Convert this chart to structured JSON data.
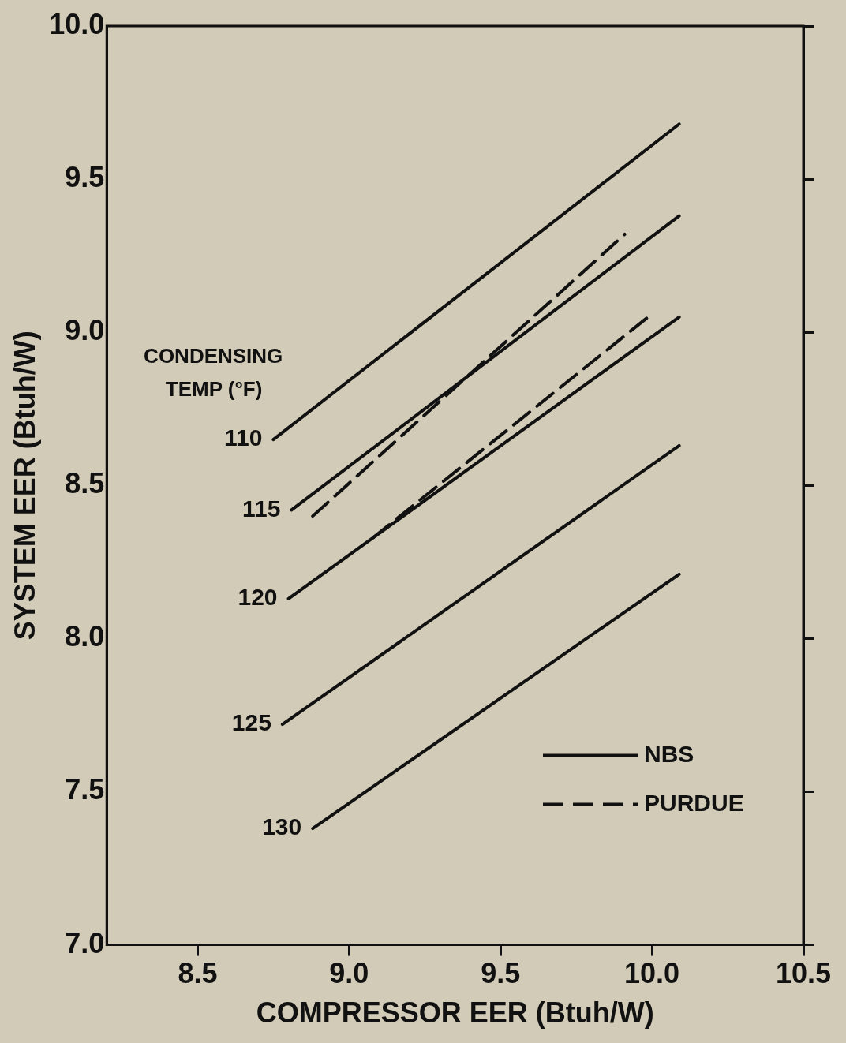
{
  "chart_data": {
    "type": "line",
    "xlabel": "COMPRESSOR EER (Btuh/W)",
    "ylabel": "SYSTEM EER (Btuh/W)",
    "xlim": [
      8.2,
      10.5
    ],
    "xticks": [
      8.5,
      {
        "value": 9,
        "label": "9.0"
      },
      9.5,
      {
        "value": 10,
        "label": "10.0"
      },
      10.5
    ],
    "ylim": [
      7,
      10
    ],
    "yticks": [
      {
        "value": 7,
        "label": "7.0"
      },
      7.5,
      {
        "value": 8,
        "label": "8.0"
      },
      8.5,
      {
        "value": 9,
        "label": "9.0"
      },
      9.5,
      {
        "value": 10,
        "label": "10.0"
      }
    ],
    "grid": false,
    "legend": "bottom right",
    "marker": "none",
    "annotations": [
      "CONDENSING TEMP (°F)",
      {
        "text": "110",
        "x": 8.75,
        "y": 8.65
      },
      {
        "text": "115",
        "x": 8.81,
        "y": 8.42
      },
      {
        "text": "120",
        "x": 8.8,
        "y": 8.13
      },
      {
        "text": "125",
        "x": 8.78,
        "y": 7.72
      },
      {
        "text": "130",
        "x": 8.88,
        "y": 7.38
      }
    ],
    "series": [
      {
        "name": "NBS",
        "color": "#111111",
        "line_style": "solid",
        "x": [
          8.75,
          10.09
        ],
        "values": [
          8.65,
          9.68
        ]
      },
      {
        "color": "#111111",
        "line_style": "solid",
        "x": [
          8.81,
          10.09
        ],
        "values": [
          8.42,
          9.38
        ]
      },
      {
        "color": "#111111",
        "line_style": "solid",
        "x": [
          8.8,
          10.09
        ],
        "values": [
          8.13,
          9.05
        ]
      },
      {
        "color": "#111111",
        "line_style": "solid",
        "x": [
          8.78,
          10.09
        ],
        "values": [
          7.72,
          8.63
        ]
      },
      {
        "color": "#111111",
        "line_style": "solid",
        "x": [
          8.88,
          10.09
        ],
        "values": [
          7.38,
          8.21
        ]
      },
      {
        "name": "PURDUE",
        "color": "#111111",
        "line_style": "dashed",
        "x": [
          8.88,
          9.91
        ],
        "values": [
          8.4,
          9.32
        ]
      },
      {
        "color": "#111111",
        "line_style": "dashed",
        "x": [
          9.08,
          10.0
        ],
        "values": [
          8.33,
          9.06
        ]
      }
    ]
  }
}
